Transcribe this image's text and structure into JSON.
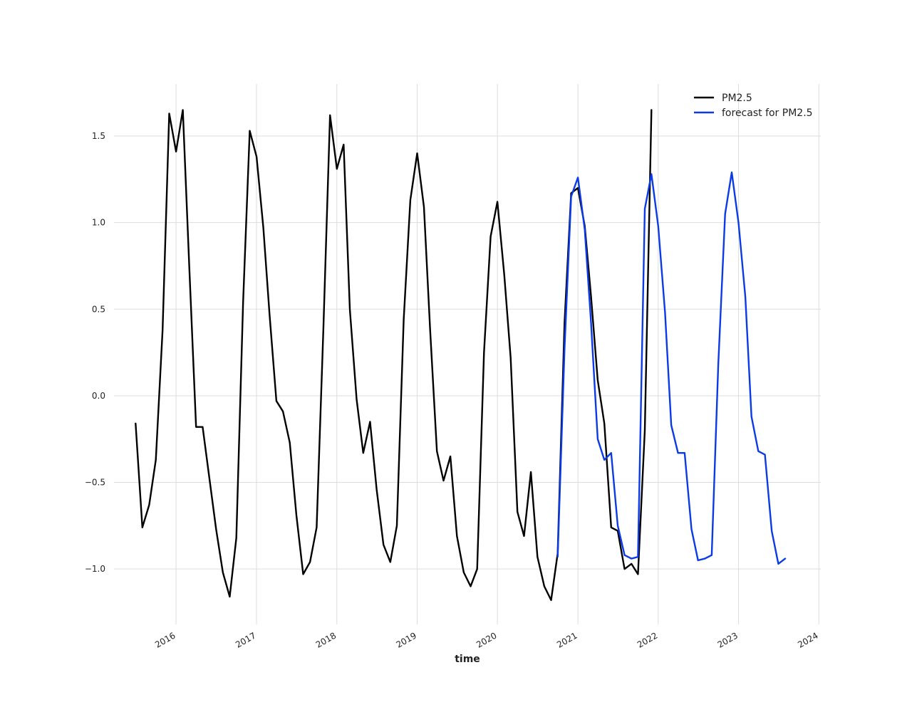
{
  "chart_data": {
    "type": "line",
    "xlabel": "time",
    "ylabel": "",
    "xlim": [
      "2015-03-25",
      "2024-01-10"
    ],
    "ylim": [
      -1.32,
      1.8
    ],
    "x_ticks": [
      "2016",
      "2017",
      "2018",
      "2019",
      "2020",
      "2021",
      "2022",
      "2023",
      "2024"
    ],
    "y_ticks": [
      1.5,
      1.0,
      0.5,
      0.0,
      -0.5,
      -1.0
    ],
    "y_tick_labels": [
      "1.5",
      "1.0",
      "0.5",
      "0.0",
      "−0.5",
      "−1.0"
    ],
    "grid": true,
    "legend_position": "top-right",
    "series": [
      {
        "name": "PM2.5",
        "color": "#000000",
        "start": "2015-07",
        "values": [
          -0.16,
          -0.76,
          -0.63,
          -0.37,
          0.38,
          1.63,
          1.41,
          1.65,
          0.75,
          -0.18,
          -0.18,
          -0.48,
          -0.77,
          -1.02,
          -1.16,
          -0.82,
          0.54,
          1.53,
          1.38,
          0.97,
          0.47,
          -0.03,
          -0.09,
          -0.27,
          -0.69,
          -1.03,
          -0.96,
          -0.76,
          0.39,
          1.62,
          1.31,
          1.45,
          0.5,
          -0.02,
          -0.33,
          -0.15,
          -0.54,
          -0.86,
          -0.96,
          -0.75,
          0.44,
          1.13,
          1.4,
          1.09,
          0.38,
          -0.32,
          -0.49,
          -0.35,
          -0.81,
          -1.02,
          -1.1,
          -1.0,
          0.25,
          0.92,
          1.12,
          0.7,
          0.22,
          -0.67,
          -0.81,
          -0.44,
          -0.93,
          -1.1,
          -1.18,
          -0.91,
          0.42,
          1.17,
          1.2,
          0.98,
          0.58,
          0.09,
          -0.16,
          -0.76,
          -0.78,
          -1.0,
          -0.97,
          -1.03,
          -0.2,
          1.65
        ]
      },
      {
        "name": "forecast for PM2.5",
        "color": "#0a3be6",
        "start": "2020-10",
        "values": [
          -0.93,
          0.27,
          1.15,
          1.26,
          0.96,
          0.43,
          -0.25,
          -0.37,
          -0.33,
          -0.75,
          -0.92,
          -0.94,
          -0.93,
          1.08,
          1.28,
          0.98,
          0.48,
          -0.17,
          -0.33,
          -0.33,
          -0.77,
          -0.95,
          -0.94,
          -0.92,
          0.18,
          1.05,
          1.29,
          1.0,
          0.57,
          -0.12,
          -0.32,
          -0.34,
          -0.78,
          -0.97,
          -0.94
        ]
      }
    ]
  }
}
